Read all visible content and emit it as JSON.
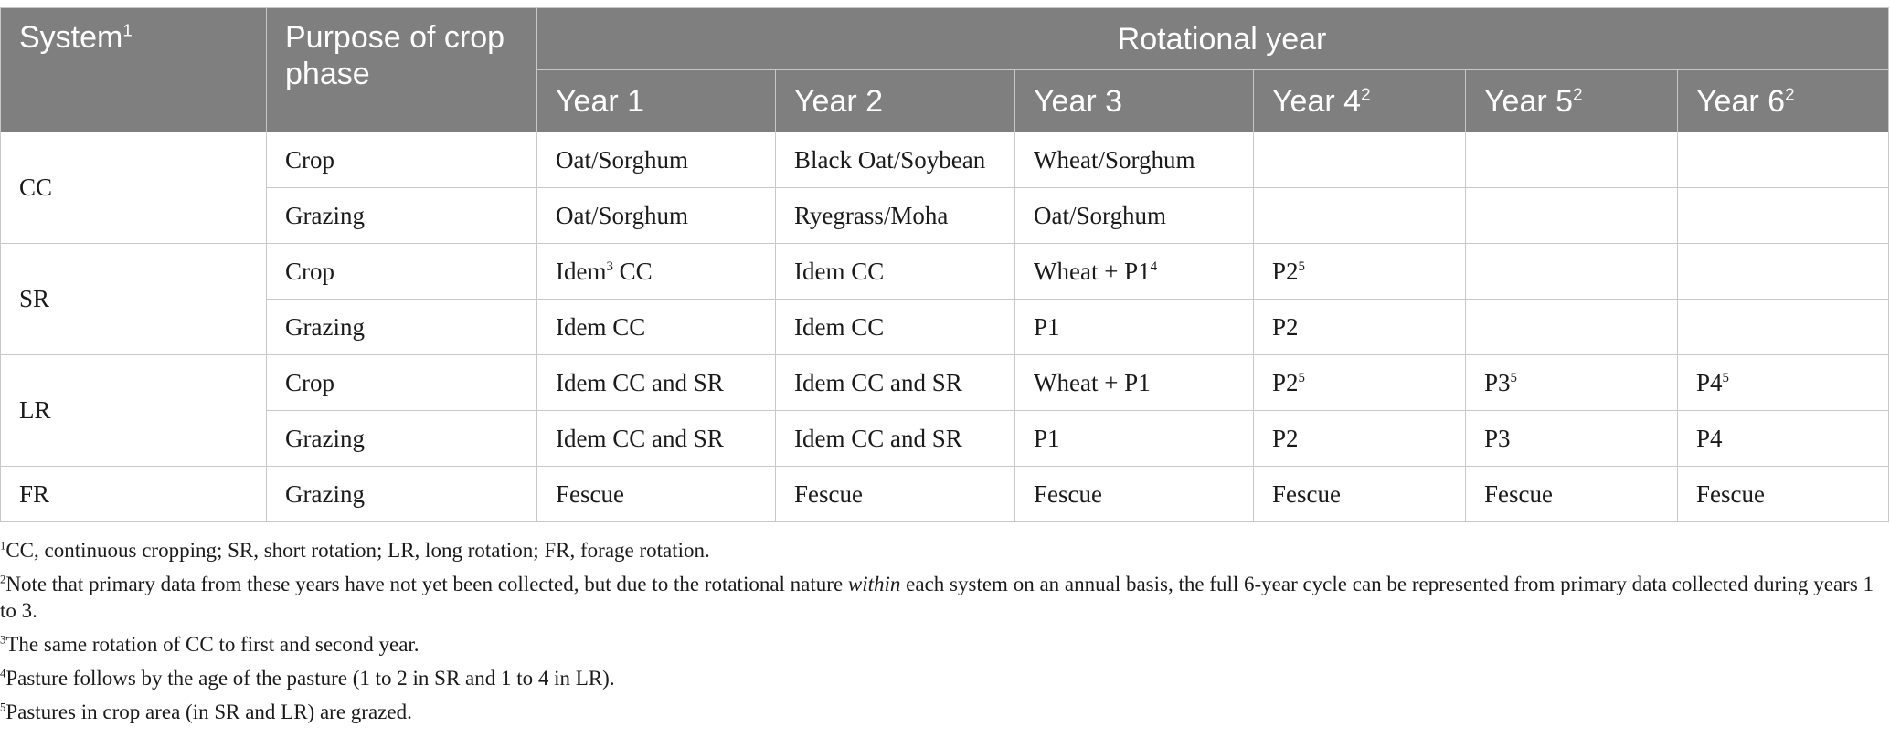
{
  "header": {
    "system": "System",
    "system_sup": "1",
    "purpose": "Purpose of crop phase",
    "rotational_year": "Rotational year",
    "years": [
      {
        "label": "Year 1",
        "sup": ""
      },
      {
        "label": "Year 2",
        "sup": ""
      },
      {
        "label": "Year 3",
        "sup": ""
      },
      {
        "label": "Year 4",
        "sup": "2"
      },
      {
        "label": "Year 5",
        "sup": "2"
      },
      {
        "label": "Year 6",
        "sup": "2"
      }
    ]
  },
  "rows": {
    "cc": {
      "system": "CC",
      "crop": {
        "purpose": "Crop",
        "y1": "Oat/Sorghum",
        "y2": "Black Oat/Soybean",
        "y3": "Wheat/Sorghum"
      },
      "grazing": {
        "purpose": "Grazing",
        "y1": "Oat/Sorghum",
        "y2": "Ryegrass/Moha",
        "y3": "Oat/Sorghum"
      }
    },
    "sr": {
      "system": "SR",
      "crop": {
        "purpose": "Crop",
        "y1": "Idem",
        "y1_sup": "3",
        "y1_rest": " CC",
        "y2": "Idem CC",
        "y3": "Wheat + P1",
        "y3_sup": "4",
        "y4": "P2",
        "y4_sup": "5"
      },
      "grazing": {
        "purpose": "Grazing",
        "y1": "Idem CC",
        "y2": "Idem CC",
        "y3": "P1",
        "y4": "P2"
      }
    },
    "lr": {
      "system": "LR",
      "crop": {
        "purpose": "Crop",
        "y1": "Idem CC and SR",
        "y2": "Idem CC and SR",
        "y3": "Wheat + P1",
        "y4": "P2",
        "y4_sup": "5",
        "y5": "P3",
        "y5_sup": "5",
        "y6": "P4",
        "y6_sup": "5"
      },
      "grazing": {
        "purpose": "Grazing",
        "y1": "Idem CC and SR",
        "y2": "Idem CC and SR",
        "y3": "P1",
        "y4": "P2",
        "y5": "P3",
        "y6": "P4"
      }
    },
    "fr": {
      "system": "FR",
      "grazing": {
        "purpose": "Grazing",
        "y1": "Fescue",
        "y2": "Fescue",
        "y3": "Fescue",
        "y4": "Fescue",
        "y5": "Fescue",
        "y6": "Fescue"
      }
    }
  },
  "footnotes": {
    "n1": {
      "mark": "1",
      "text": "CC, continuous cropping; SR, short rotation; LR, long rotation; FR, forage rotation."
    },
    "n2": {
      "mark": "2",
      "text_a": "Note that primary data from these years have not yet been collected, but due to the rotational nature ",
      "text_em": "within",
      "text_b": " each system on an annual basis, the full 6-year cycle can be represented from primary data collected during years 1 to 3."
    },
    "n3": {
      "mark": "3",
      "text": "The same rotation of CC to first and second year."
    },
    "n4": {
      "mark": "4",
      "text": "Pasture follows by the age of the pasture (1 to 2 in SR and 1 to 4 in LR)."
    },
    "n5": {
      "mark": "5",
      "text": "Pastures in crop area (in SR and LR) are grazed."
    }
  }
}
